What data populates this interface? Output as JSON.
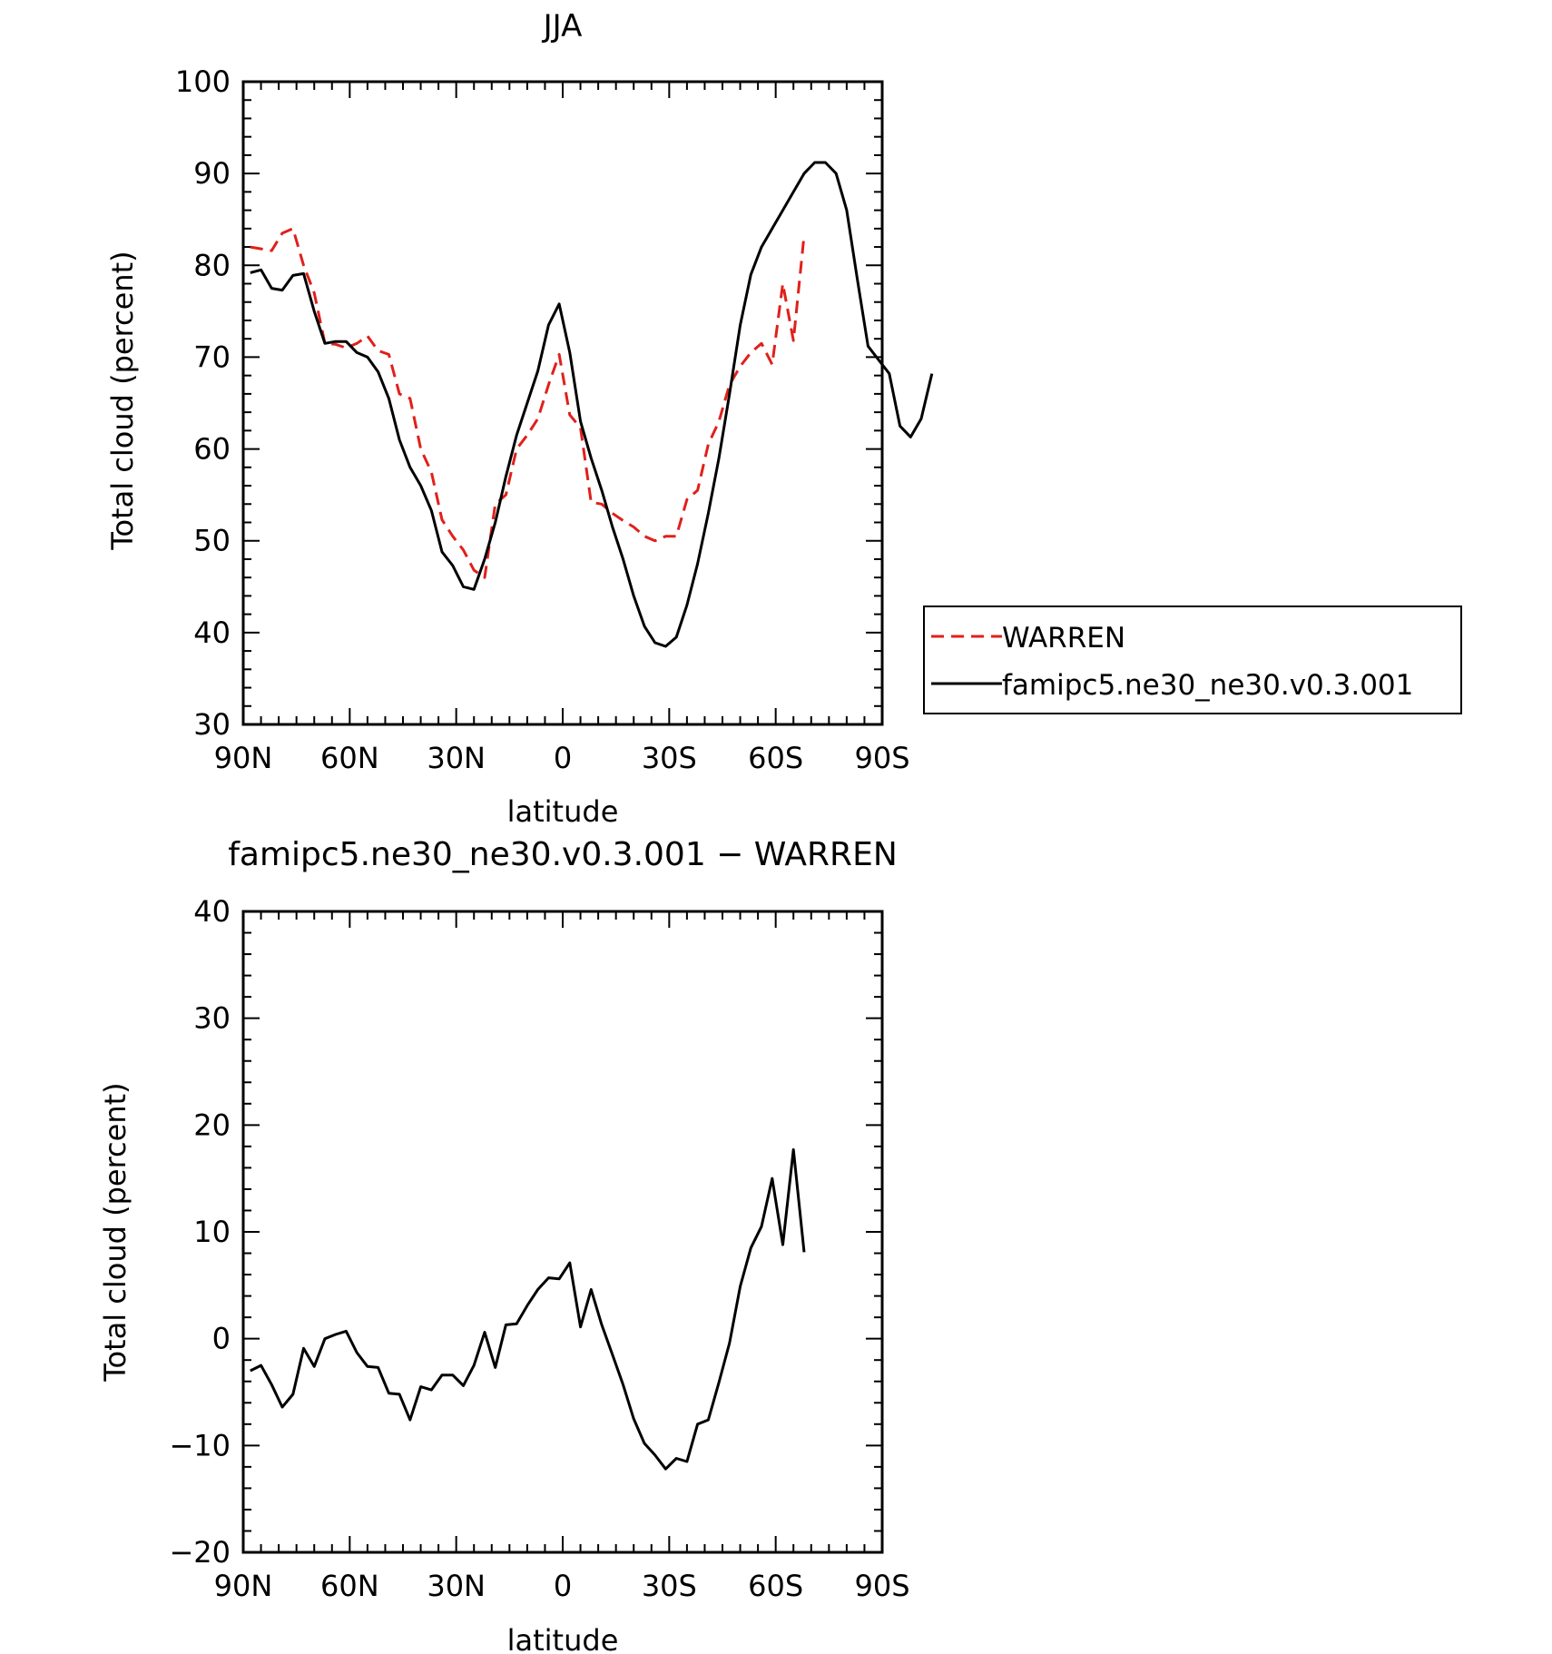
{
  "chart_data": [
    {
      "type": "line",
      "title": "JJA",
      "xlabel": "latitude",
      "ylabel": "Total cloud (percent)",
      "xlim": [
        90,
        -90
      ],
      "ylim": [
        30,
        100
      ],
      "xticks": [
        90,
        60,
        30,
        0,
        -30,
        -60,
        -90
      ],
      "xtick_labels": [
        "90N",
        "60N",
        "30N",
        "0",
        "30S",
        "60S",
        "90S"
      ],
      "yticks": [
        30,
        40,
        50,
        60,
        70,
        80,
        90,
        100
      ],
      "ytick_labels": [
        "30",
        "40",
        "50",
        "60",
        "70",
        "80",
        "90",
        "100"
      ],
      "legend_position": "outside-right",
      "series": [
        {
          "name": "WARREN",
          "color": "#e0201b",
          "dash": true,
          "points": [
            [
              88,
              82
            ],
            [
              85,
              81.8
            ],
            [
              82,
              81.6
            ],
            [
              79,
              83.5
            ],
            [
              76,
              84
            ],
            [
              73,
              80
            ],
            [
              70,
              77
            ],
            [
              67,
              71.5
            ],
            [
              64,
              71.4
            ],
            [
              61,
              71
            ],
            [
              58,
              71.5
            ],
            [
              55,
              72.3
            ],
            [
              52,
              70.7
            ],
            [
              49,
              70.3
            ],
            [
              46,
              66
            ],
            [
              43,
              65.5
            ],
            [
              40,
              60
            ],
            [
              37,
              57.5
            ],
            [
              34,
              52.3
            ],
            [
              31,
              50.5
            ],
            [
              28,
              49
            ],
            [
              25,
              46.8
            ],
            [
              22,
              46
            ],
            [
              19,
              54
            ],
            [
              16,
              55
            ],
            [
              13,
              60
            ],
            [
              10,
              61.5
            ],
            [
              7,
              63.3
            ],
            [
              4,
              67
            ],
            [
              1,
              70.3
            ],
            [
              -2,
              63.7
            ],
            [
              -5,
              62.3
            ],
            [
              -8,
              54.2
            ],
            [
              -11,
              54
            ],
            [
              -14,
              53
            ],
            [
              -17,
              52.2
            ],
            [
              -20,
              51.5
            ],
            [
              -23,
              50.5
            ],
            [
              -26,
              50
            ],
            [
              -29,
              50.5
            ],
            [
              -32,
              50.5
            ],
            [
              -35,
              54.5
            ],
            [
              -38,
              55.5
            ],
            [
              -41,
              60.5
            ],
            [
              -44,
              63
            ],
            [
              -47,
              67
            ],
            [
              -50,
              69
            ],
            [
              -53,
              70.5
            ],
            [
              -56,
              71.5
            ],
            [
              -59,
              69.2
            ],
            [
              -62,
              78
            ],
            [
              -65,
              71.8
            ],
            [
              -68,
              83.3
            ]
          ]
        },
        {
          "name": "famipc5.ne30_ne30.v0.3.001",
          "color": "#000000",
          "dash": false,
          "points": [
            [
              88,
              79.2
            ],
            [
              85,
              79.5
            ],
            [
              82,
              77.5
            ],
            [
              79,
              77.3
            ],
            [
              76,
              78.9
            ],
            [
              73,
              79.1
            ],
            [
              70,
              75
            ],
            [
              67,
              71.5
            ],
            [
              64,
              71.7
            ],
            [
              61,
              71.7
            ],
            [
              58,
              70.5
            ],
            [
              55,
              70
            ],
            [
              52,
              68.4
            ],
            [
              49,
              65.5
            ],
            [
              46,
              61
            ],
            [
              43,
              58
            ],
            [
              40,
              56
            ],
            [
              37,
              53.3
            ],
            [
              34,
              48.8
            ],
            [
              31,
              47.3
            ],
            [
              28,
              45
            ],
            [
              25,
              44.7
            ],
            [
              22,
              48
            ],
            [
              19,
              52
            ],
            [
              16,
              57
            ],
            [
              13,
              61.5
            ],
            [
              10,
              65
            ],
            [
              7,
              68.5
            ],
            [
              4,
              73.5
            ],
            [
              1,
              75.8
            ],
            [
              -2,
              70.5
            ],
            [
              -5,
              63
            ],
            [
              -8,
              59
            ],
            [
              -11,
              55.5
            ],
            [
              -14,
              51.5
            ],
            [
              -17,
              48
            ],
            [
              -20,
              44
            ],
            [
              -23,
              40.7
            ],
            [
              -26,
              38.9
            ],
            [
              -29,
              38.5
            ],
            [
              -32,
              39.5
            ],
            [
              -35,
              43
            ],
            [
              -38,
              47.5
            ],
            [
              -41,
              53
            ],
            [
              -44,
              59
            ],
            [
              -47,
              66
            ],
            [
              -50,
              73.5
            ],
            [
              -53,
              79
            ],
            [
              -56,
              82
            ],
            [
              -59,
              84
            ],
            [
              -62,
              86
            ],
            [
              -65,
              88
            ],
            [
              -68,
              90
            ],
            [
              -71,
              91.2
            ],
            [
              -74,
              91.2
            ],
            [
              -77,
              90
            ],
            [
              -80,
              86
            ],
            [
              -83,
              78.5
            ],
            [
              -86,
              71.2
            ],
            [
              -89,
              69.7
            ],
            [
              -92,
              68.2
            ],
            [
              -95,
              62.5
            ],
            [
              -98,
              61.3
            ],
            [
              -101,
              63.3
            ],
            [
              -104,
              68.2
            ]
          ]
        }
      ]
    },
    {
      "type": "line",
      "title": "famipc5.ne30_ne30.v0.3.001 − WARREN",
      "xlabel": "latitude",
      "ylabel": "Total cloud (percent)",
      "xlim": [
        90,
        -90
      ],
      "ylim": [
        -20,
        40
      ],
      "xticks": [
        90,
        60,
        30,
        0,
        -30,
        -60,
        -90
      ],
      "xtick_labels": [
        "90N",
        "60N",
        "30N",
        "0",
        "30S",
        "60S",
        "90S"
      ],
      "yticks": [
        -20,
        -10,
        0,
        10,
        20,
        30,
        40
      ],
      "ytick_labels": [
        "−20",
        "−10",
        "0",
        "10",
        "20",
        "30",
        "40"
      ],
      "series": [
        {
          "color": "#000000",
          "dash": false,
          "points": [
            [
              88,
              -3
            ],
            [
              85,
              -2.5
            ],
            [
              82,
              -4.3
            ],
            [
              79,
              -6.4
            ],
            [
              76,
              -5.2
            ],
            [
              73,
              -0.9
            ],
            [
              70,
              -2.6
            ],
            [
              67,
              0
            ],
            [
              64,
              0.4
            ],
            [
              61,
              0.7
            ],
            [
              58,
              -1.3
            ],
            [
              55,
              -2.6
            ],
            [
              52,
              -2.7
            ],
            [
              49,
              -5.1
            ],
            [
              46,
              -5.2
            ],
            [
              43,
              -7.6
            ],
            [
              40,
              -4.5
            ],
            [
              37,
              -4.8
            ],
            [
              34,
              -3.4
            ],
            [
              31,
              -3.4
            ],
            [
              28,
              -4.4
            ],
            [
              25,
              -2.5
            ],
            [
              22,
              0.6
            ],
            [
              19,
              -2.7
            ],
            [
              16,
              1.3
            ],
            [
              13,
              1.4
            ],
            [
              10,
              3.1
            ],
            [
              7,
              4.6
            ],
            [
              4,
              5.7
            ],
            [
              1,
              5.6
            ],
            [
              -2,
              7.1
            ],
            [
              -5,
              1.1
            ],
            [
              -8,
              4.6
            ],
            [
              -11,
              1.3
            ],
            [
              -14,
              -1.5
            ],
            [
              -17,
              -4.3
            ],
            [
              -20,
              -7.5
            ],
            [
              -23,
              -9.8
            ],
            [
              -26,
              -10.9
            ],
            [
              -29,
              -12.2
            ],
            [
              -32,
              -11.2
            ],
            [
              -35,
              -11.5
            ],
            [
              -38,
              -8
            ],
            [
              -41,
              -7.6
            ],
            [
              -44,
              -4.1
            ],
            [
              -47,
              -0.4
            ],
            [
              -50,
              4.9
            ],
            [
              -53,
              8.5
            ],
            [
              -56,
              10.5
            ],
            [
              -59,
              15
            ],
            [
              -62,
              8.8
            ],
            [
              -65,
              17.7
            ],
            [
              -68,
              8.1
            ]
          ]
        }
      ]
    }
  ]
}
